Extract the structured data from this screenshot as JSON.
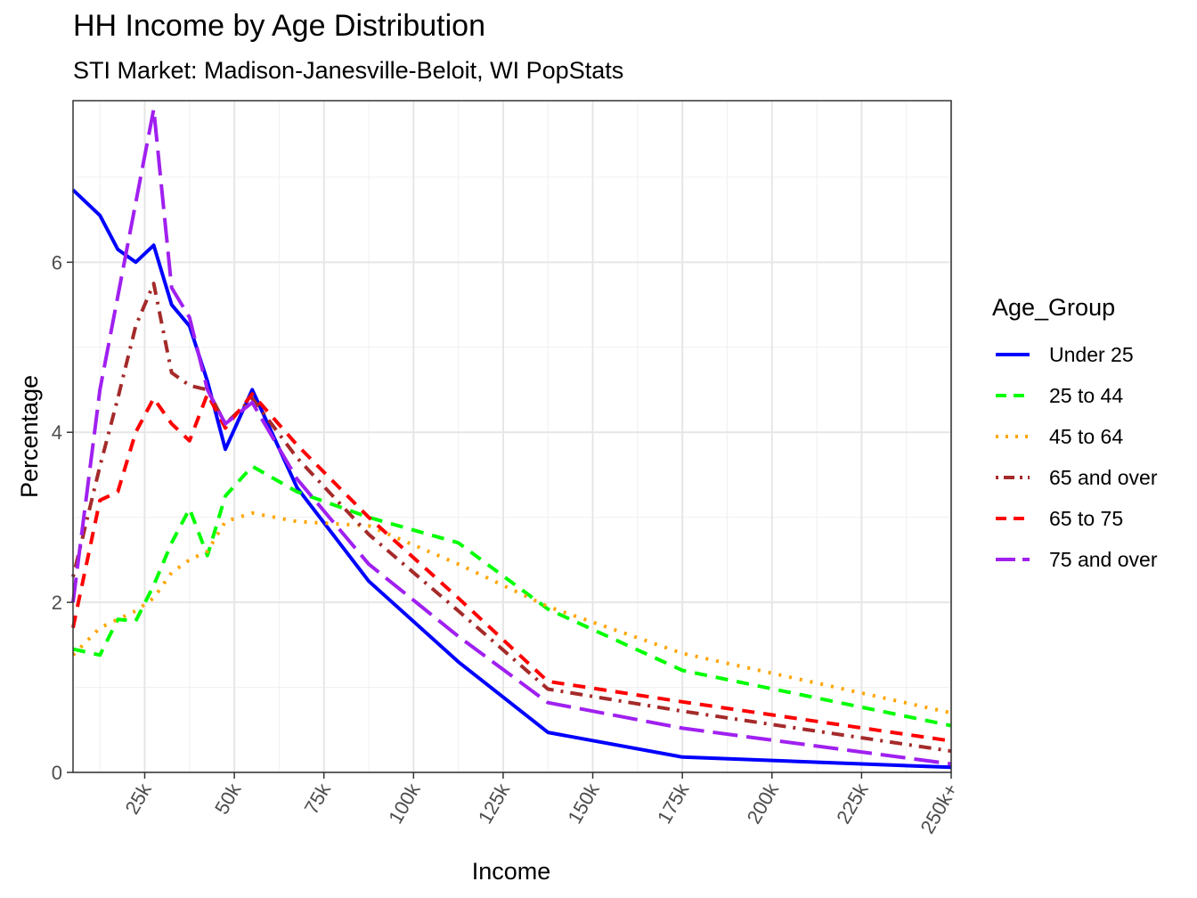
{
  "title": "HH Income by Age Distribution",
  "subtitle": "STI Market: Madison-Janesville-Beloit, WI PopStats",
  "legend_title": "Age_Group",
  "chart_data": {
    "type": "line",
    "title": "HH Income by Age Distribution",
    "subtitle": "STI Market: Madison-Janesville-Beloit, WI PopStats",
    "xlabel": "Income",
    "ylabel": "Percentage",
    "xlim": [
      5,
      250
    ],
    "ylim": [
      0,
      7.9
    ],
    "x_ticks": [
      25,
      50,
      75,
      100,
      125,
      150,
      175,
      200,
      225,
      250
    ],
    "x_tick_labels": [
      "25k",
      "50k",
      "75k",
      "100k",
      "125k",
      "150k",
      "175k",
      "200k",
      "225k",
      "250k+"
    ],
    "y_ticks": [
      0,
      2,
      4,
      6
    ],
    "y_tick_labels": [
      "0",
      "2",
      "4",
      "6"
    ],
    "grid": true,
    "legend_position": "right",
    "x": [
      5,
      12.5,
      17.5,
      22.5,
      27.5,
      32.5,
      37.5,
      42.5,
      47.5,
      55,
      67.5,
      87.5,
      112.5,
      137.5,
      175,
      250
    ],
    "series": [
      {
        "name": "Under 25",
        "color": "#0000FF",
        "dash": "solid",
        "values": [
          6.85,
          6.55,
          6.15,
          6.0,
          6.2,
          5.5,
          5.25,
          4.6,
          3.8,
          4.5,
          3.35,
          2.25,
          1.3,
          0.47,
          0.18,
          0.06
        ]
      },
      {
        "name": "25 to 44",
        "color": "#00FF00",
        "dash": "dashed",
        "values": [
          1.45,
          1.38,
          1.8,
          1.78,
          2.2,
          2.7,
          3.1,
          2.55,
          3.25,
          3.6,
          3.3,
          3.0,
          2.7,
          1.92,
          1.2,
          0.55
        ]
      },
      {
        "name": "45 to 64",
        "color": "#FFA500",
        "dash": "dotted",
        "values": [
          1.38,
          1.7,
          1.8,
          1.9,
          2.05,
          2.35,
          2.5,
          2.6,
          2.95,
          3.05,
          2.95,
          2.9,
          2.45,
          1.95,
          1.4,
          0.7
        ]
      },
      {
        "name": "65 and over",
        "color": "#A52A2A",
        "dash": "dotdash",
        "values": [
          2.3,
          3.6,
          4.4,
          5.25,
          5.75,
          4.7,
          4.55,
          4.5,
          4.1,
          4.4,
          3.7,
          2.8,
          1.9,
          0.98,
          0.72,
          0.25
        ]
      },
      {
        "name": "65 to 75",
        "color": "#FF0000",
        "dash": "dashed",
        "values": [
          1.7,
          3.2,
          3.3,
          4.0,
          4.4,
          4.1,
          3.9,
          4.45,
          4.05,
          4.45,
          3.85,
          3.0,
          2.05,
          1.07,
          0.83,
          0.37
        ]
      },
      {
        "name": "75 and over",
        "color": "#A020F0",
        "dash": "longdash",
        "values": [
          2.0,
          4.5,
          5.6,
          6.7,
          7.8,
          5.7,
          5.35,
          4.5,
          4.1,
          4.35,
          3.45,
          2.45,
          1.6,
          0.82,
          0.52,
          0.1
        ]
      }
    ]
  }
}
